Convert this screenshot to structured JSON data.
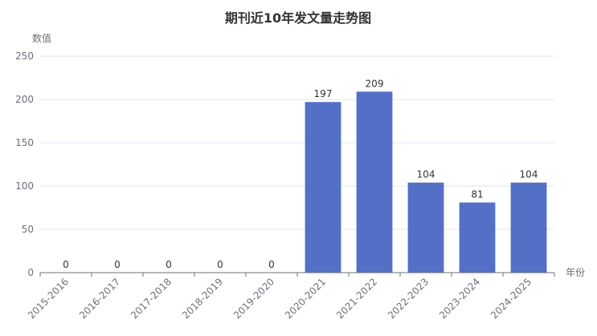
{
  "chart_data": {
    "type": "bar",
    "title": "期刊近10年发文量走势图",
    "xlabel": "年份",
    "ylabel": "数值",
    "categories": [
      "2015-2016",
      "2016-2017",
      "2017-2018",
      "2018-2019",
      "2019-2020",
      "2020-2021",
      "2021-2022",
      "2022-2023",
      "2023-2024",
      "2024-2025"
    ],
    "values": [
      0,
      0,
      0,
      0,
      0,
      197,
      209,
      104,
      81,
      104
    ],
    "ylim": [
      0,
      250
    ],
    "yticks": [
      0,
      50,
      100,
      150,
      200,
      250
    ],
    "grid": true,
    "bar_color": "#5470c6"
  }
}
